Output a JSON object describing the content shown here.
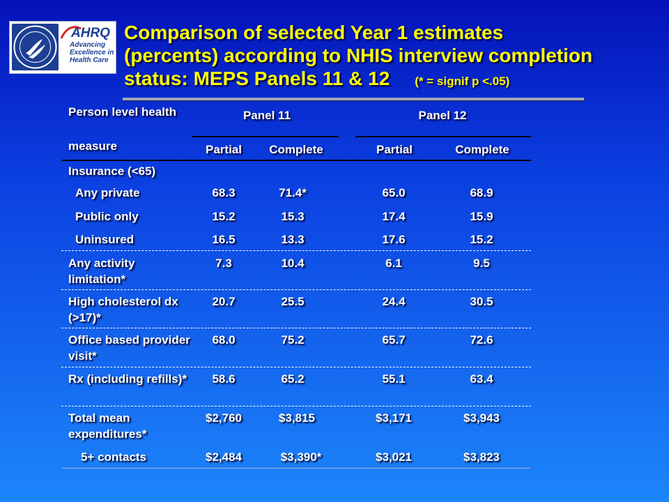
{
  "logo": {
    "seal_alt": "HHS seal",
    "brand": "AHRQ",
    "tagline": [
      "Advancing",
      "Excellence in",
      "Health Care"
    ]
  },
  "title": {
    "line1": "Comparison of selected Year 1 estimates",
    "line2": "(percents) according to NHIS interview completion",
    "line3": "status:  MEPS Panels 11 & 12",
    "note": "(* = signif p <.05)"
  },
  "table": {
    "header": {
      "person_level": "Person level health",
      "measure": "measure",
      "panel11": "Panel 11",
      "panel12": "Panel 12",
      "partial": "Partial",
      "complete": "Complete"
    },
    "rows": [
      {
        "label": "Insurance (<65)",
        "values": [
          "",
          "",
          "",
          ""
        ]
      },
      {
        "label": "Any private",
        "values": [
          "68.3",
          "71.4*",
          "65.0",
          "68.9"
        ]
      },
      {
        "label": "Public only",
        "values": [
          "15.2",
          "15.3",
          "17.4",
          "15.9"
        ]
      },
      {
        "label": "Uninsured",
        "values": [
          "16.5",
          "13.3",
          "17.6",
          "15.2"
        ]
      },
      {
        "label": "Any activity limitation*",
        "values": [
          "7.3",
          "10.4",
          "6.1",
          "9.5"
        ]
      },
      {
        "label": "High cholesterol dx (>17)*",
        "values": [
          "20.7",
          "25.5",
          "24.4",
          "30.5"
        ]
      },
      {
        "label": "Office based provider visit*",
        "values": [
          "68.0",
          "75.2",
          "65.7",
          "72.6"
        ]
      },
      {
        "label": "Rx (including refills)*",
        "values": [
          "58.6",
          "65.2",
          "55.1",
          "63.4"
        ]
      },
      {
        "label": "Total mean expenditures*",
        "values": [
          "$2,760",
          "$3,815",
          "$3,171",
          "$3,943"
        ]
      },
      {
        "label": "5+ contacts",
        "values": [
          "$2,484",
          "$3,390*",
          "$3,021",
          "$3,823"
        ]
      }
    ]
  }
}
